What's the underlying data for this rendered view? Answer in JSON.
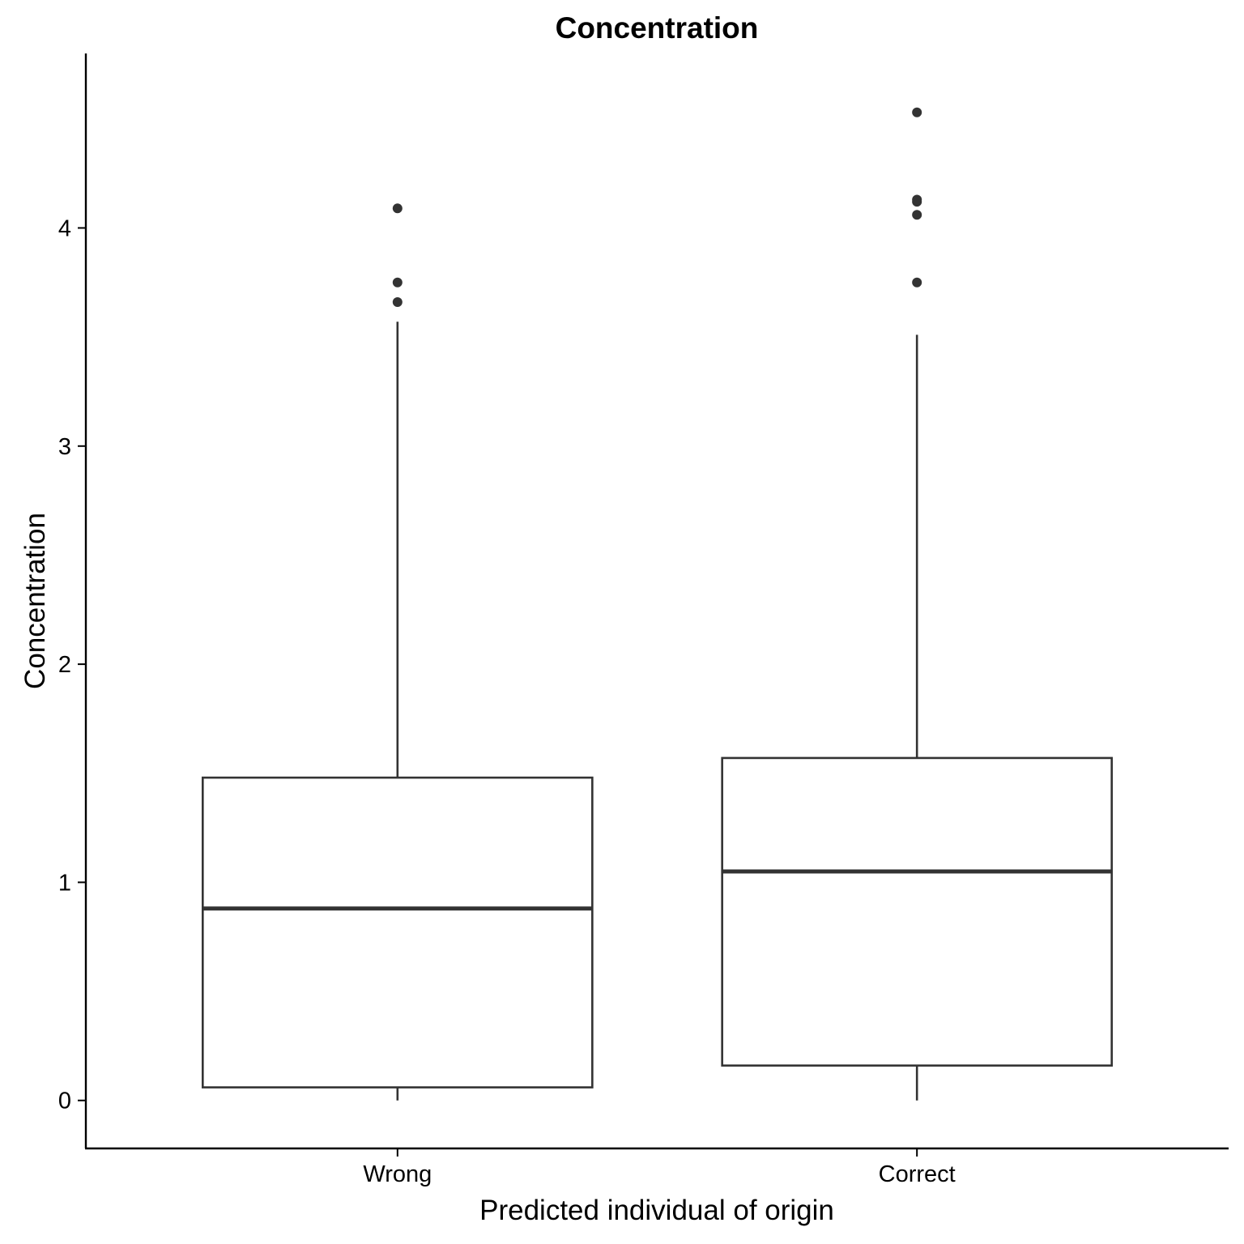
{
  "chart_data": {
    "type": "box",
    "title": "Concentration",
    "xlabel": "Predicted individual of origin",
    "ylabel": "Concentration",
    "categories": [
      "Wrong",
      "Correct"
    ],
    "ylim": [
      -0.22,
      4.8
    ],
    "yticks": [
      0,
      1,
      2,
      3,
      4
    ],
    "grid": false,
    "legend": "none",
    "boxes": [
      {
        "category": "Wrong",
        "whisker_low": 0.0,
        "q1": 0.06,
        "median": 0.88,
        "q3": 1.48,
        "whisker_high": 3.57,
        "outliers": [
          3.66,
          3.75,
          4.09
        ]
      },
      {
        "category": "Correct",
        "whisker_low": 0.0,
        "q1": 0.16,
        "median": 1.05,
        "q3": 1.57,
        "whisker_high": 3.51,
        "outliers": [
          3.75,
          4.06,
          4.12,
          4.13,
          4.53
        ]
      }
    ],
    "colors": {
      "box_stroke": "#333333",
      "box_fill": "#ffffff",
      "outlier": "#333333",
      "axis": "#000000"
    }
  }
}
